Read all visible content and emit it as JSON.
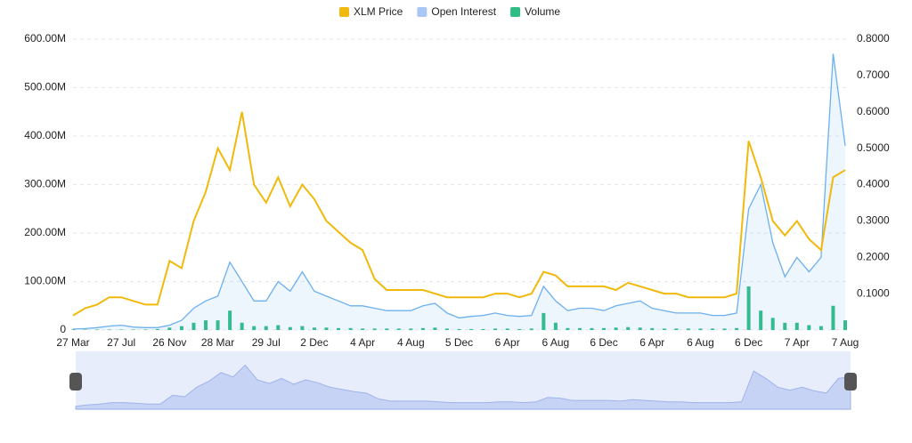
{
  "chart_data": {
    "type": "line",
    "categories": [
      "27 Mar",
      null,
      null,
      null,
      "27 Jul",
      null,
      null,
      null,
      "26 Nov",
      null,
      null,
      null,
      "28 Mar",
      null,
      null,
      null,
      "29 Jul",
      null,
      null,
      null,
      "2 Dec",
      null,
      null,
      null,
      "4 Apr",
      null,
      null,
      null,
      "4 Aug",
      null,
      null,
      null,
      "5 Dec",
      null,
      null,
      null,
      "6 Apr",
      null,
      null,
      null,
      "6 Aug",
      null,
      null,
      null,
      "6 Dec",
      null,
      null,
      null,
      "6 Apr",
      null,
      null,
      null,
      "6 Aug",
      null,
      null,
      null,
      "6 Dec",
      null,
      null,
      null,
      "7 Apr",
      null,
      null,
      null,
      "7 Aug"
    ],
    "series": [
      {
        "name": "XLM Price",
        "color": "#f0b90b",
        "axis": "y2",
        "values": [
          0.04,
          0.06,
          0.07,
          0.09,
          0.09,
          0.08,
          0.07,
          0.07,
          0.19,
          0.17,
          0.3,
          0.38,
          0.5,
          0.44,
          0.6,
          0.4,
          0.35,
          0.42,
          0.34,
          0.4,
          0.36,
          0.3,
          0.27,
          0.24,
          0.22,
          0.14,
          0.11,
          0.11,
          0.11,
          0.11,
          0.1,
          0.09,
          0.09,
          0.09,
          0.09,
          0.1,
          0.1,
          0.09,
          0.1,
          0.16,
          0.15,
          0.12,
          0.12,
          0.12,
          0.12,
          0.11,
          0.13,
          0.12,
          0.11,
          0.1,
          0.1,
          0.09,
          0.09,
          0.09,
          0.09,
          0.1,
          0.52,
          0.42,
          0.3,
          0.26,
          0.3,
          0.25,
          0.22,
          0.42,
          0.44
        ]
      },
      {
        "name": "Open Interest",
        "color": "#6cb0f0",
        "values": [
          2000000,
          3000000,
          5000000,
          8000000,
          10000000,
          6000000,
          5000000,
          5000000,
          10000000,
          20000000,
          45000000,
          60000000,
          70000000,
          140000000,
          100000000,
          60000000,
          60000000,
          100000000,
          80000000,
          120000000,
          80000000,
          70000000,
          60000000,
          50000000,
          50000000,
          45000000,
          40000000,
          40000000,
          40000000,
          50000000,
          55000000,
          35000000,
          25000000,
          28000000,
          30000000,
          35000000,
          30000000,
          28000000,
          30000000,
          90000000,
          60000000,
          40000000,
          45000000,
          45000000,
          40000000,
          50000000,
          55000000,
          60000000,
          45000000,
          40000000,
          35000000,
          35000000,
          35000000,
          30000000,
          30000000,
          35000000,
          250000000,
          300000000,
          180000000,
          110000000,
          150000000,
          120000000,
          150000000,
          570000000,
          380000000
        ]
      },
      {
        "name": "Volume",
        "color": "#2ebd85",
        "values": [
          1000000,
          1000000,
          1000000,
          1000000,
          1000000,
          1000000,
          1000000,
          2000000,
          5000000,
          8000000,
          15000000,
          20000000,
          20000000,
          40000000,
          15000000,
          8000000,
          8000000,
          10000000,
          6000000,
          8000000,
          5000000,
          5000000,
          4000000,
          4000000,
          3000000,
          3000000,
          3000000,
          3000000,
          3000000,
          4000000,
          5000000,
          3000000,
          2000000,
          2000000,
          2000000,
          3000000,
          3000000,
          2000000,
          3000000,
          35000000,
          15000000,
          4000000,
          4000000,
          4000000,
          4000000,
          5000000,
          6000000,
          5000000,
          4000000,
          3000000,
          3000000,
          3000000,
          3000000,
          3000000,
          3000000,
          4000000,
          90000000,
          40000000,
          25000000,
          15000000,
          15000000,
          10000000,
          8000000,
          50000000,
          20000000
        ]
      }
    ],
    "ylim": [
      0,
      600000000
    ],
    "yticks": [
      0,
      {
        "value": 100000000,
        "label": "100.00M"
      },
      {
        "value": 200000000,
        "label": "200.00M"
      },
      {
        "value": 300000000,
        "label": "300.00M"
      },
      {
        "value": 400000000,
        "label": "400.00M"
      },
      {
        "value": 500000000,
        "label": "500.00M"
      },
      {
        "value": 600000000,
        "label": "600.00M"
      }
    ],
    "y2lim": [
      0,
      0.8
    ],
    "y2ticks": [
      {
        "value": 0.1,
        "label": "0.1000"
      },
      {
        "value": 0.2,
        "label": "0.2000"
      },
      {
        "value": 0.3,
        "label": "0.3000"
      },
      {
        "value": 0.4,
        "label": "0.4000"
      },
      {
        "value": 0.5,
        "label": "0.5000"
      },
      {
        "value": 0.6,
        "label": "0.6000"
      },
      {
        "value": 0.7,
        "label": "0.7000"
      },
      {
        "value": 0.8,
        "label": "0.8000"
      }
    ],
    "grid": true
  }
}
